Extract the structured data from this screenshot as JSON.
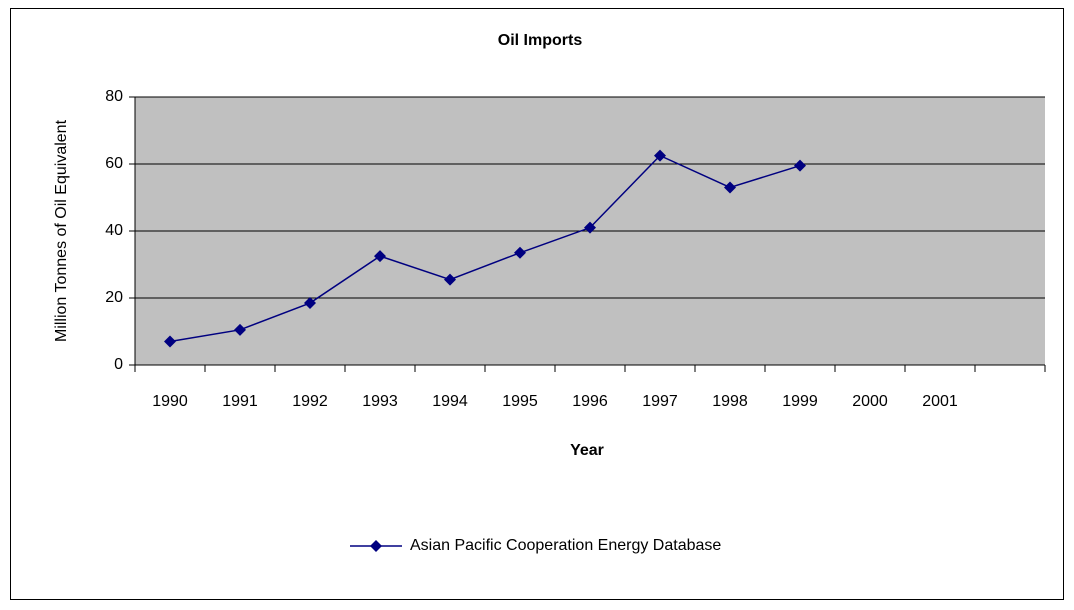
{
  "chart_data": {
    "type": "line",
    "title": "Oil Imports",
    "x_label": "Year",
    "y_label": "Million Tonnes of Oil Equivalent",
    "categories": [
      "1990",
      "1991",
      "1992",
      "1993",
      "1994",
      "1995",
      "1996",
      "1997",
      "1998",
      "1999",
      "2000",
      "2001",
      null
    ],
    "series": [
      {
        "name": "Asian Pacific Cooperation Energy Database",
        "color": "#000080",
        "values": [
          7,
          10.5,
          18.5,
          32.5,
          25.5,
          33.5,
          41,
          62.5,
          53,
          59.5,
          null,
          null,
          null
        ]
      }
    ],
    "ylim": [
      0,
      80
    ],
    "yticks": [
      0,
      20,
      40,
      60,
      80
    ],
    "grid": true,
    "plot_background": "#c0c0c0",
    "legend": "bottom"
  }
}
